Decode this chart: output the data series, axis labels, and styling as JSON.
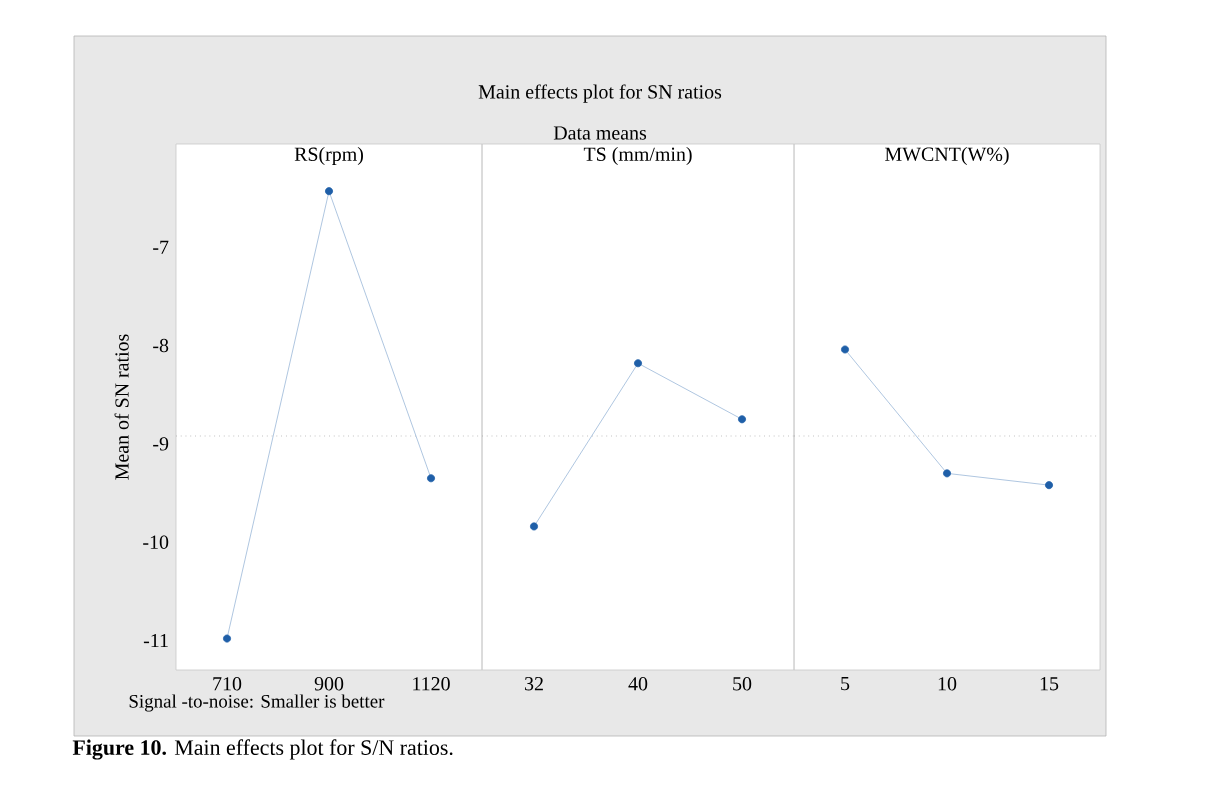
{
  "chart_data": [
    {
      "type": "line",
      "title": "RS(rpm)",
      "ylabel": "Mean of SN ratios",
      "categories": [
        "710",
        "900",
        "1120"
      ],
      "values": [
        -10.98,
        -6.43,
        -9.35
      ],
      "color": "#1f5fa8",
      "marker": "circle",
      "ylim": [
        -11.3,
        -5.95
      ],
      "yticks": [
        -11,
        -10,
        -9,
        -8,
        -7
      ],
      "ref_lines": [
        {
          "axis": "y",
          "value": -8.92,
          "line_style": "dotted",
          "color": "#a0a0a0"
        }
      ],
      "annotations": [
        "Main effects plot for SN ratios",
        "Data means",
        "Signal -to-noise: Smaller is better",
        "**Figure 10.** Main effects plot for S/N ratios."
      ]
    },
    {
      "type": "line",
      "title": "TS (mm/min)",
      "categories": [
        "32",
        "40",
        "50"
      ],
      "values": [
        -9.84,
        -8.18,
        -8.75
      ],
      "color": "#1f5fa8",
      "marker": "circle",
      "ylim": [
        -11.3,
        -5.95
      ],
      "yticks": [
        -11,
        -10,
        -9,
        -8,
        -7
      ],
      "tick_labels": "x",
      "ref_lines": [
        {
          "axis": "y",
          "value": -8.92,
          "line_style": "dotted",
          "color": "#a0a0a0"
        }
      ]
    },
    {
      "type": "line",
      "title": "MWCNT(W%)",
      "categories": [
        "5",
        "10",
        "15"
      ],
      "values": [
        -8.04,
        -9.3,
        -9.42
      ],
      "color": "#1f5fa8",
      "marker": "circle",
      "ylim": [
        -11.3,
        -5.95
      ],
      "yticks": [
        -11,
        -10,
        -9,
        -8,
        -7
      ],
      "tick_labels": "x",
      "ref_lines": [
        {
          "axis": "y",
          "value": -8.92,
          "line_style": "dotted",
          "color": "#a0a0a0"
        }
      ]
    }
  ]
}
